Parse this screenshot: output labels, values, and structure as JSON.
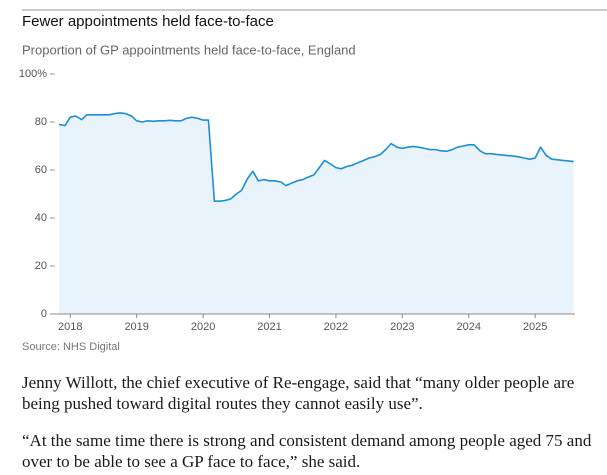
{
  "chart_data": {
    "type": "area-line",
    "title": "Fewer appointments held face-to-face",
    "subtitle": "Proportion of GP appointments held face-to-face, England",
    "source": "Source: NHS Digital",
    "color": "#1a8fd6",
    "fill_color": "#e8f3fc",
    "x": [
      2017.83,
      2017.92,
      2018.0,
      2018.08,
      2018.17,
      2018.25,
      2018.33,
      2018.42,
      2018.5,
      2018.58,
      2018.67,
      2018.75,
      2018.83,
      2018.92,
      2019.0,
      2019.08,
      2019.17,
      2019.25,
      2019.33,
      2019.42,
      2019.5,
      2019.58,
      2019.67,
      2019.75,
      2019.83,
      2019.92,
      2020.0,
      2020.08,
      2020.17,
      2020.25,
      2020.33,
      2020.42,
      2020.5,
      2020.58,
      2020.67,
      2020.75,
      2020.83,
      2020.92,
      2021.0,
      2021.08,
      2021.17,
      2021.25,
      2021.33,
      2021.42,
      2021.5,
      2021.58,
      2021.67,
      2021.75,
      2021.83,
      2021.92,
      2022.0,
      2022.08,
      2022.17,
      2022.25,
      2022.33,
      2022.42,
      2022.5,
      2022.58,
      2022.67,
      2022.75,
      2022.83,
      2022.92,
      2023.0,
      2023.08,
      2023.17,
      2023.25,
      2023.33,
      2023.42,
      2023.5,
      2023.58,
      2023.67,
      2023.75,
      2023.83,
      2023.92,
      2024.0,
      2024.08,
      2024.17,
      2024.25,
      2024.33,
      2024.42,
      2024.5,
      2024.58,
      2024.67,
      2024.75,
      2024.83,
      2024.92,
      2025.0,
      2025.08,
      2025.17,
      2025.25,
      2025.33,
      2025.42,
      2025.5,
      2025.58
    ],
    "values": [
      79,
      78.5,
      82,
      82.5,
      81,
      83,
      83,
      83,
      83,
      83,
      83.5,
      83.8,
      83.5,
      82.5,
      80.5,
      80,
      80.5,
      80.3,
      80.5,
      80.5,
      80.7,
      80.5,
      80.5,
      81.5,
      82,
      81.5,
      80.8,
      80.8,
      47,
      47,
      47.3,
      48,
      50,
      51.5,
      56.5,
      59.5,
      55.5,
      56,
      55.5,
      55.5,
      55,
      53.5,
      54.5,
      55.5,
      56,
      57,
      58,
      61,
      64,
      62.5,
      61,
      60.5,
      61.5,
      62,
      63,
      64,
      65,
      65.5,
      66.5,
      68.5,
      71,
      69.5,
      69,
      69.5,
      69.8,
      69.5,
      69,
      68.5,
      68.5,
      68,
      67.8,
      68.5,
      69.5,
      70,
      70.5,
      70.5,
      68,
      66.8,
      66.8,
      66.5,
      66.3,
      66,
      65.8,
      65.5,
      65,
      64.5,
      65,
      69.5,
      66,
      64.5,
      64.3,
      64,
      63.8,
      63.5
    ],
    "xlim": [
      2017.77,
      2025.6
    ],
    "xticks": [
      2018,
      2019,
      2020,
      2021,
      2022,
      2023,
      2024,
      2025
    ],
    "ylim": [
      0,
      100
    ],
    "yticks": [
      0,
      20,
      40,
      60,
      80,
      {
        "value": 100,
        "label": "100%"
      }
    ]
  },
  "article": {
    "paragraphs": [
      "Jenny Willott, the chief executive of Re-engage, said that “many older people are being pushed toward digital routes they cannot easily use”.",
      "“At the same time there is strong and consistent demand among people aged 75 and over to be able to see a GP face to face,” she said."
    ]
  }
}
